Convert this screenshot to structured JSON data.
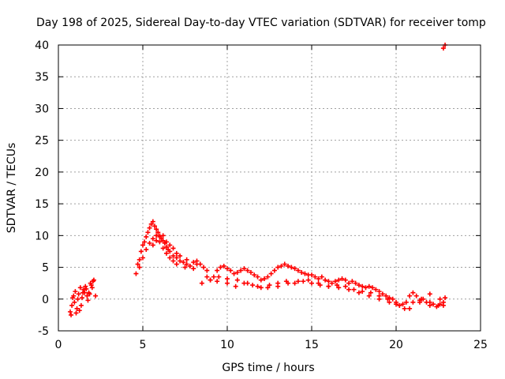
{
  "chart_data": {
    "type": "scatter",
    "title": "Day 198 of 2025, Sidereal Day-to-day VTEC variation (SDTVAR) for receiver tomp",
    "xlabel": "GPS time / hours",
    "ylabel": "SDTVAR / TECUs",
    "xlim": [
      0,
      25
    ],
    "ylim": [
      -5,
      40
    ],
    "xticks": [
      0,
      5,
      10,
      15,
      20,
      25
    ],
    "yticks": [
      -5,
      0,
      5,
      10,
      15,
      20,
      25,
      30,
      35,
      40
    ],
    "grid": true,
    "colors": {
      "points": "#ff0000",
      "grid": "#a0a0a0",
      "axes": "#000000"
    },
    "series": [
      {
        "name": "SDTVAR",
        "marker": "plus",
        "x": [
          0.7,
          0.8,
          0.9,
          1.0,
          1.1,
          1.2,
          1.3,
          1.4,
          1.5,
          1.6,
          1.7,
          1.8,
          1.9,
          2.0,
          2.1,
          2.2,
          0.75,
          0.95,
          1.15,
          1.35,
          1.55,
          1.75,
          1.95,
          0.85,
          1.05,
          1.25,
          1.45,
          1.65,
          1.85,
          2.05,
          4.6,
          4.7,
          4.8,
          4.9,
          5.0,
          5.1,
          5.2,
          5.3,
          5.4,
          5.5,
          5.6,
          5.7,
          5.8,
          5.9,
          6.0,
          6.1,
          6.2,
          6.3,
          6.4,
          6.5,
          6.6,
          6.8,
          7.0,
          7.2,
          7.4,
          7.6,
          7.8,
          8.0,
          8.2,
          8.4,
          8.6,
          8.8,
          9.0,
          9.2,
          9.4,
          9.6,
          9.8,
          10.0,
          10.2,
          10.4,
          10.6,
          10.8,
          11.0,
          11.2,
          11.4,
          11.6,
          11.8,
          12.0,
          12.2,
          12.4,
          12.6,
          12.8,
          13.0,
          13.2,
          13.4,
          13.6,
          13.8,
          14.0,
          14.2,
          14.4,
          14.6,
          14.8,
          15.0,
          15.2,
          15.4,
          15.6,
          15.8,
          16.0,
          16.2,
          16.4,
          16.6,
          16.8,
          17.0,
          17.2,
          17.4,
          17.6,
          17.8,
          18.0,
          18.2,
          18.4,
          18.6,
          18.8,
          19.0,
          19.2,
          19.4,
          19.6,
          19.8,
          20.0,
          20.2,
          20.4,
          20.6,
          20.8,
          21.0,
          21.2,
          21.4,
          21.6,
          21.8,
          22.0,
          22.2,
          22.4,
          22.6,
          22.8,
          22.9,
          4.8,
          5.0,
          5.2,
          5.4,
          5.6,
          5.8,
          6.0,
          6.2,
          6.4,
          6.6,
          6.8,
          7.0,
          7.5,
          8.0,
          8.5,
          9.0,
          9.5,
          10.0,
          10.5,
          11.0,
          11.5,
          12.0,
          12.5,
          13.0,
          13.5,
          14.0,
          14.5,
          15.0,
          15.5,
          16.0,
          16.5,
          17.0,
          17.5,
          18.0,
          18.5,
          19.0,
          19.5,
          20.0,
          20.5,
          21.0,
          21.5,
          22.0,
          22.5,
          22.8,
          5.6,
          5.8,
          6.0,
          6.2,
          6.4,
          6.6,
          6.8,
          7.0,
          7.2,
          7.6,
          8.2,
          8.8,
          9.4,
          10.0,
          10.6,
          11.2,
          11.8,
          12.4,
          13.0,
          13.6,
          14.2,
          14.8,
          15.4,
          16.0,
          16.6,
          17.2,
          17.8,
          18.4,
          19.0,
          19.6,
          20.2,
          20.8,
          21.4,
          22.0,
          22.6,
          22.8,
          22.9
        ],
        "y": [
          -2.0,
          -1.0,
          0.5,
          1.2,
          -1.5,
          0.8,
          1.8,
          0.2,
          1.5,
          2.0,
          0.5,
          1.0,
          2.5,
          1.8,
          3.0,
          0.5,
          -2.5,
          -0.5,
          0.0,
          -1.0,
          1.0,
          -0.2,
          2.2,
          0.2,
          -2.2,
          -1.8,
          1.0,
          1.6,
          0.8,
          2.8,
          4.0,
          5.5,
          6.2,
          7.5,
          8.5,
          9.0,
          9.8,
          10.5,
          11.2,
          11.8,
          12.2,
          11.5,
          11.0,
          10.5,
          10.0,
          9.5,
          9.2,
          8.8,
          8.2,
          7.8,
          7.5,
          6.8,
          6.5,
          6.0,
          5.8,
          5.5,
          5.2,
          5.8,
          6.0,
          5.5,
          5.0,
          4.5,
          3.0,
          3.5,
          4.5,
          5.0,
          5.2,
          4.8,
          4.5,
          4.0,
          4.2,
          4.5,
          4.8,
          4.5,
          4.2,
          3.8,
          3.5,
          3.0,
          3.2,
          3.5,
          4.0,
          4.5,
          5.0,
          5.2,
          5.5,
          5.2,
          5.0,
          4.8,
          4.5,
          4.2,
          4.0,
          3.8,
          3.8,
          3.5,
          3.2,
          3.5,
          3.0,
          2.8,
          2.5,
          2.8,
          3.0,
          3.2,
          3.0,
          2.5,
          2.8,
          2.5,
          2.2,
          2.0,
          1.8,
          2.0,
          1.8,
          1.5,
          1.2,
          0.8,
          0.5,
          0.2,
          0.0,
          -0.5,
          -1.0,
          -0.8,
          -0.5,
          0.5,
          1.0,
          0.5,
          -0.2,
          0.0,
          -0.5,
          0.8,
          -0.8,
          -1.2,
          0.0,
          -0.5,
          0.2,
          5.0,
          6.5,
          7.8,
          8.8,
          9.5,
          10.0,
          9.0,
          8.0,
          7.2,
          6.5,
          6.0,
          5.5,
          5.0,
          4.8,
          2.5,
          3.0,
          3.5,
          2.5,
          2.0,
          2.5,
          2.2,
          1.8,
          2.2,
          2.5,
          2.8,
          2.5,
          2.8,
          2.5,
          2.2,
          2.0,
          2.2,
          2.0,
          1.5,
          1.2,
          1.0,
          0.5,
          0.0,
          -0.8,
          -1.5,
          -0.5,
          0.0,
          -0.5,
          -1.0,
          -1.0,
          8.5,
          9.2,
          9.8,
          10.0,
          9.0,
          8.5,
          8.0,
          7.2,
          6.8,
          6.2,
          5.5,
          3.5,
          2.8,
          3.2,
          3.0,
          2.5,
          2.0,
          1.8,
          2.0,
          2.5,
          2.8,
          3.0,
          2.5,
          2.0,
          1.8,
          1.5,
          1.0,
          0.5,
          0.0,
          -0.5,
          -1.0,
          -1.5,
          -0.5,
          -1.0,
          -0.8,
          39.5,
          40.0
        ]
      }
    ]
  }
}
